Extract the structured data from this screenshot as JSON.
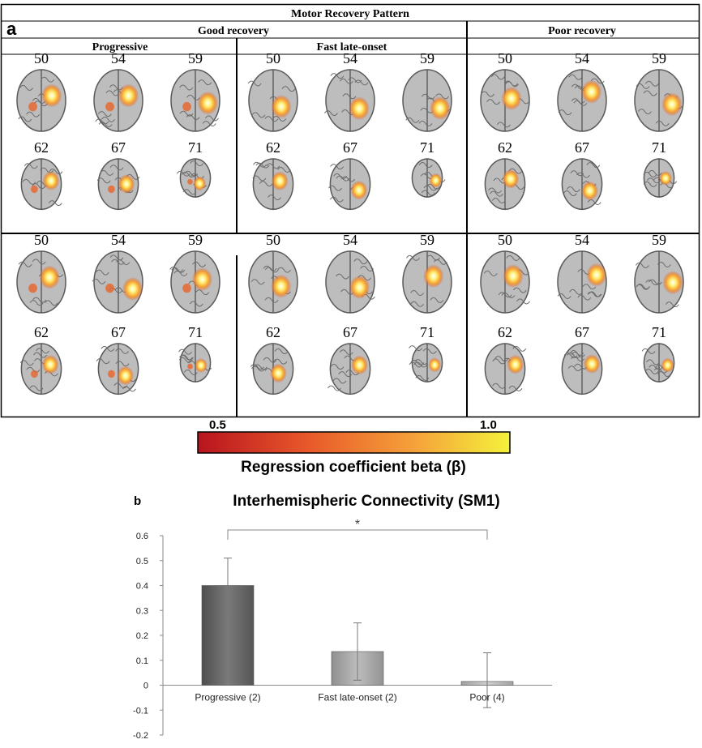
{
  "panel_a": {
    "label": "a",
    "title": "Motor Recovery Pattern",
    "group_good": "Good recovery",
    "group_poor": "Poor recovery",
    "subgroups": [
      "Progressive",
      "Fast late-onset",
      "Poor recovery"
    ],
    "slices_top": [
      "50",
      "54",
      "59"
    ],
    "slices_bottom": [
      "62",
      "67",
      "71"
    ],
    "colorbar": {
      "min_label": "0.5",
      "max_label": "1.0",
      "title": "Regression coefficient beta (β)",
      "colors": [
        "#b8141e",
        "#e8582a",
        "#f5a33a",
        "#f4f23a"
      ]
    }
  },
  "chart_data": {
    "type": "bar",
    "label": "b",
    "title": "Interhemispheric Connectivity (SM1)",
    "categories": [
      "Progressive (2)",
      "Fast late-onset (2)",
      "Poor (4)"
    ],
    "values": [
      0.4,
      0.135,
      0.015
    ],
    "error_upper": [
      0.51,
      0.25,
      0.13
    ],
    "error_lower": [
      0.29,
      0.02,
      -0.09
    ],
    "colors": [
      "#6d6d6d",
      "#a6a6a6",
      "#b8b8b8"
    ],
    "ylim": [
      -0.2,
      0.6
    ],
    "yticks": [
      "-0.2",
      "-0.1",
      "0",
      "0.1",
      "0.2",
      "0.3",
      "0.4",
      "0.5",
      "0.6"
    ],
    "significance": "*"
  }
}
